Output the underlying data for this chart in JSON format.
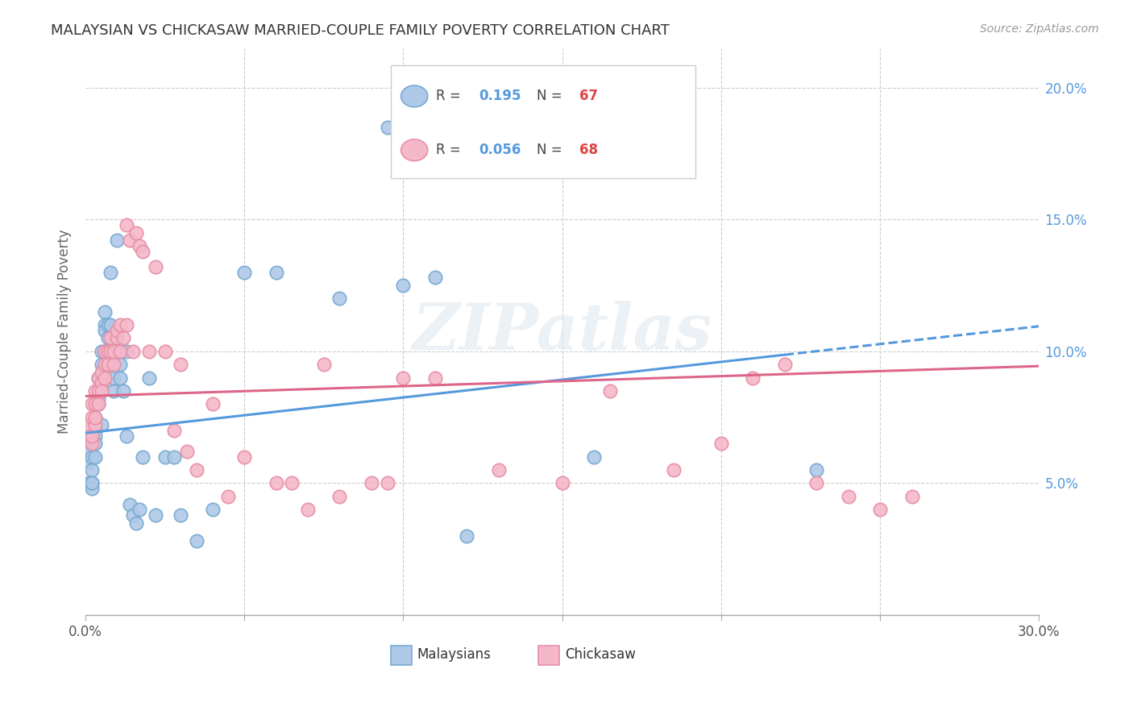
{
  "title": "MALAYSIAN VS CHICKASAW MARRIED-COUPLE FAMILY POVERTY CORRELATION CHART",
  "source": "Source: ZipAtlas.com",
  "ylabel": "Married-Couple Family Poverty",
  "xlim": [
    0.0,
    0.3
  ],
  "ylim": [
    0.0,
    0.215
  ],
  "xtick_positions": [
    0.0,
    0.3
  ],
  "xtick_labels": [
    "0.0%",
    "30.0%"
  ],
  "yticks": [
    0.05,
    0.1,
    0.15,
    0.2
  ],
  "ytick_labels": [
    "5.0%",
    "10.0%",
    "15.0%",
    "20.0%"
  ],
  "malaysian_color": "#aec9e8",
  "chickasaw_color": "#f5b8c8",
  "malaysian_edge": "#7aaad0",
  "chickasaw_edge": "#e890a8",
  "line1_color": "#5599dd",
  "line2_color": "#dd6688",
  "watermark": "ZIPatlas",
  "malaysians_label": "Malaysians",
  "chickasaw_label": "Chickasaw",
  "R1": "0.195",
  "N1": "67",
  "R2": "0.056",
  "N2": "68",
  "malaysian_x": [
    0.001,
    0.001,
    0.001,
    0.001,
    0.001,
    0.002,
    0.002,
    0.002,
    0.002,
    0.002,
    0.002,
    0.002,
    0.003,
    0.003,
    0.003,
    0.003,
    0.003,
    0.003,
    0.004,
    0.004,
    0.004,
    0.004,
    0.005,
    0.005,
    0.005,
    0.005,
    0.006,
    0.006,
    0.006,
    0.006,
    0.007,
    0.007,
    0.007,
    0.008,
    0.008,
    0.008,
    0.009,
    0.009,
    0.01,
    0.01,
    0.01,
    0.011,
    0.011,
    0.012,
    0.013,
    0.013,
    0.014,
    0.015,
    0.016,
    0.017,
    0.018,
    0.02,
    0.022,
    0.025,
    0.028,
    0.03,
    0.035,
    0.04,
    0.05,
    0.06,
    0.08,
    0.095,
    0.1,
    0.11,
    0.12,
    0.16,
    0.23
  ],
  "malaysian_y": [
    0.065,
    0.065,
    0.062,
    0.058,
    0.05,
    0.068,
    0.07,
    0.055,
    0.05,
    0.048,
    0.06,
    0.05,
    0.07,
    0.072,
    0.075,
    0.068,
    0.065,
    0.06,
    0.08,
    0.082,
    0.09,
    0.085,
    0.088,
    0.095,
    0.072,
    0.1,
    0.115,
    0.11,
    0.108,
    0.1,
    0.095,
    0.11,
    0.105,
    0.1,
    0.11,
    0.13,
    0.085,
    0.09,
    0.1,
    0.105,
    0.142,
    0.09,
    0.095,
    0.085,
    0.1,
    0.068,
    0.042,
    0.038,
    0.035,
    0.04,
    0.06,
    0.09,
    0.038,
    0.06,
    0.06,
    0.038,
    0.028,
    0.04,
    0.13,
    0.13,
    0.12,
    0.185,
    0.125,
    0.128,
    0.03,
    0.06,
    0.055
  ],
  "chickasaw_x": [
    0.001,
    0.001,
    0.001,
    0.002,
    0.002,
    0.002,
    0.002,
    0.003,
    0.003,
    0.003,
    0.003,
    0.004,
    0.004,
    0.004,
    0.005,
    0.005,
    0.005,
    0.006,
    0.006,
    0.006,
    0.007,
    0.007,
    0.008,
    0.008,
    0.009,
    0.009,
    0.01,
    0.01,
    0.011,
    0.011,
    0.012,
    0.013,
    0.013,
    0.014,
    0.015,
    0.016,
    0.017,
    0.018,
    0.02,
    0.022,
    0.025,
    0.028,
    0.03,
    0.032,
    0.035,
    0.04,
    0.045,
    0.05,
    0.06,
    0.065,
    0.07,
    0.075,
    0.08,
    0.09,
    0.095,
    0.1,
    0.11,
    0.13,
    0.15,
    0.165,
    0.185,
    0.2,
    0.21,
    0.22,
    0.23,
    0.24,
    0.25,
    0.26
  ],
  "chickasaw_y": [
    0.068,
    0.07,
    0.072,
    0.065,
    0.068,
    0.075,
    0.08,
    0.072,
    0.075,
    0.08,
    0.085,
    0.08,
    0.085,
    0.09,
    0.088,
    0.092,
    0.085,
    0.09,
    0.095,
    0.1,
    0.095,
    0.1,
    0.1,
    0.105,
    0.095,
    0.1,
    0.105,
    0.108,
    0.1,
    0.11,
    0.105,
    0.11,
    0.148,
    0.142,
    0.1,
    0.145,
    0.14,
    0.138,
    0.1,
    0.132,
    0.1,
    0.07,
    0.095,
    0.062,
    0.055,
    0.08,
    0.045,
    0.06,
    0.05,
    0.05,
    0.04,
    0.095,
    0.045,
    0.05,
    0.05,
    0.09,
    0.09,
    0.055,
    0.05,
    0.085,
    0.055,
    0.065,
    0.09,
    0.095,
    0.05,
    0.045,
    0.04,
    0.045
  ]
}
